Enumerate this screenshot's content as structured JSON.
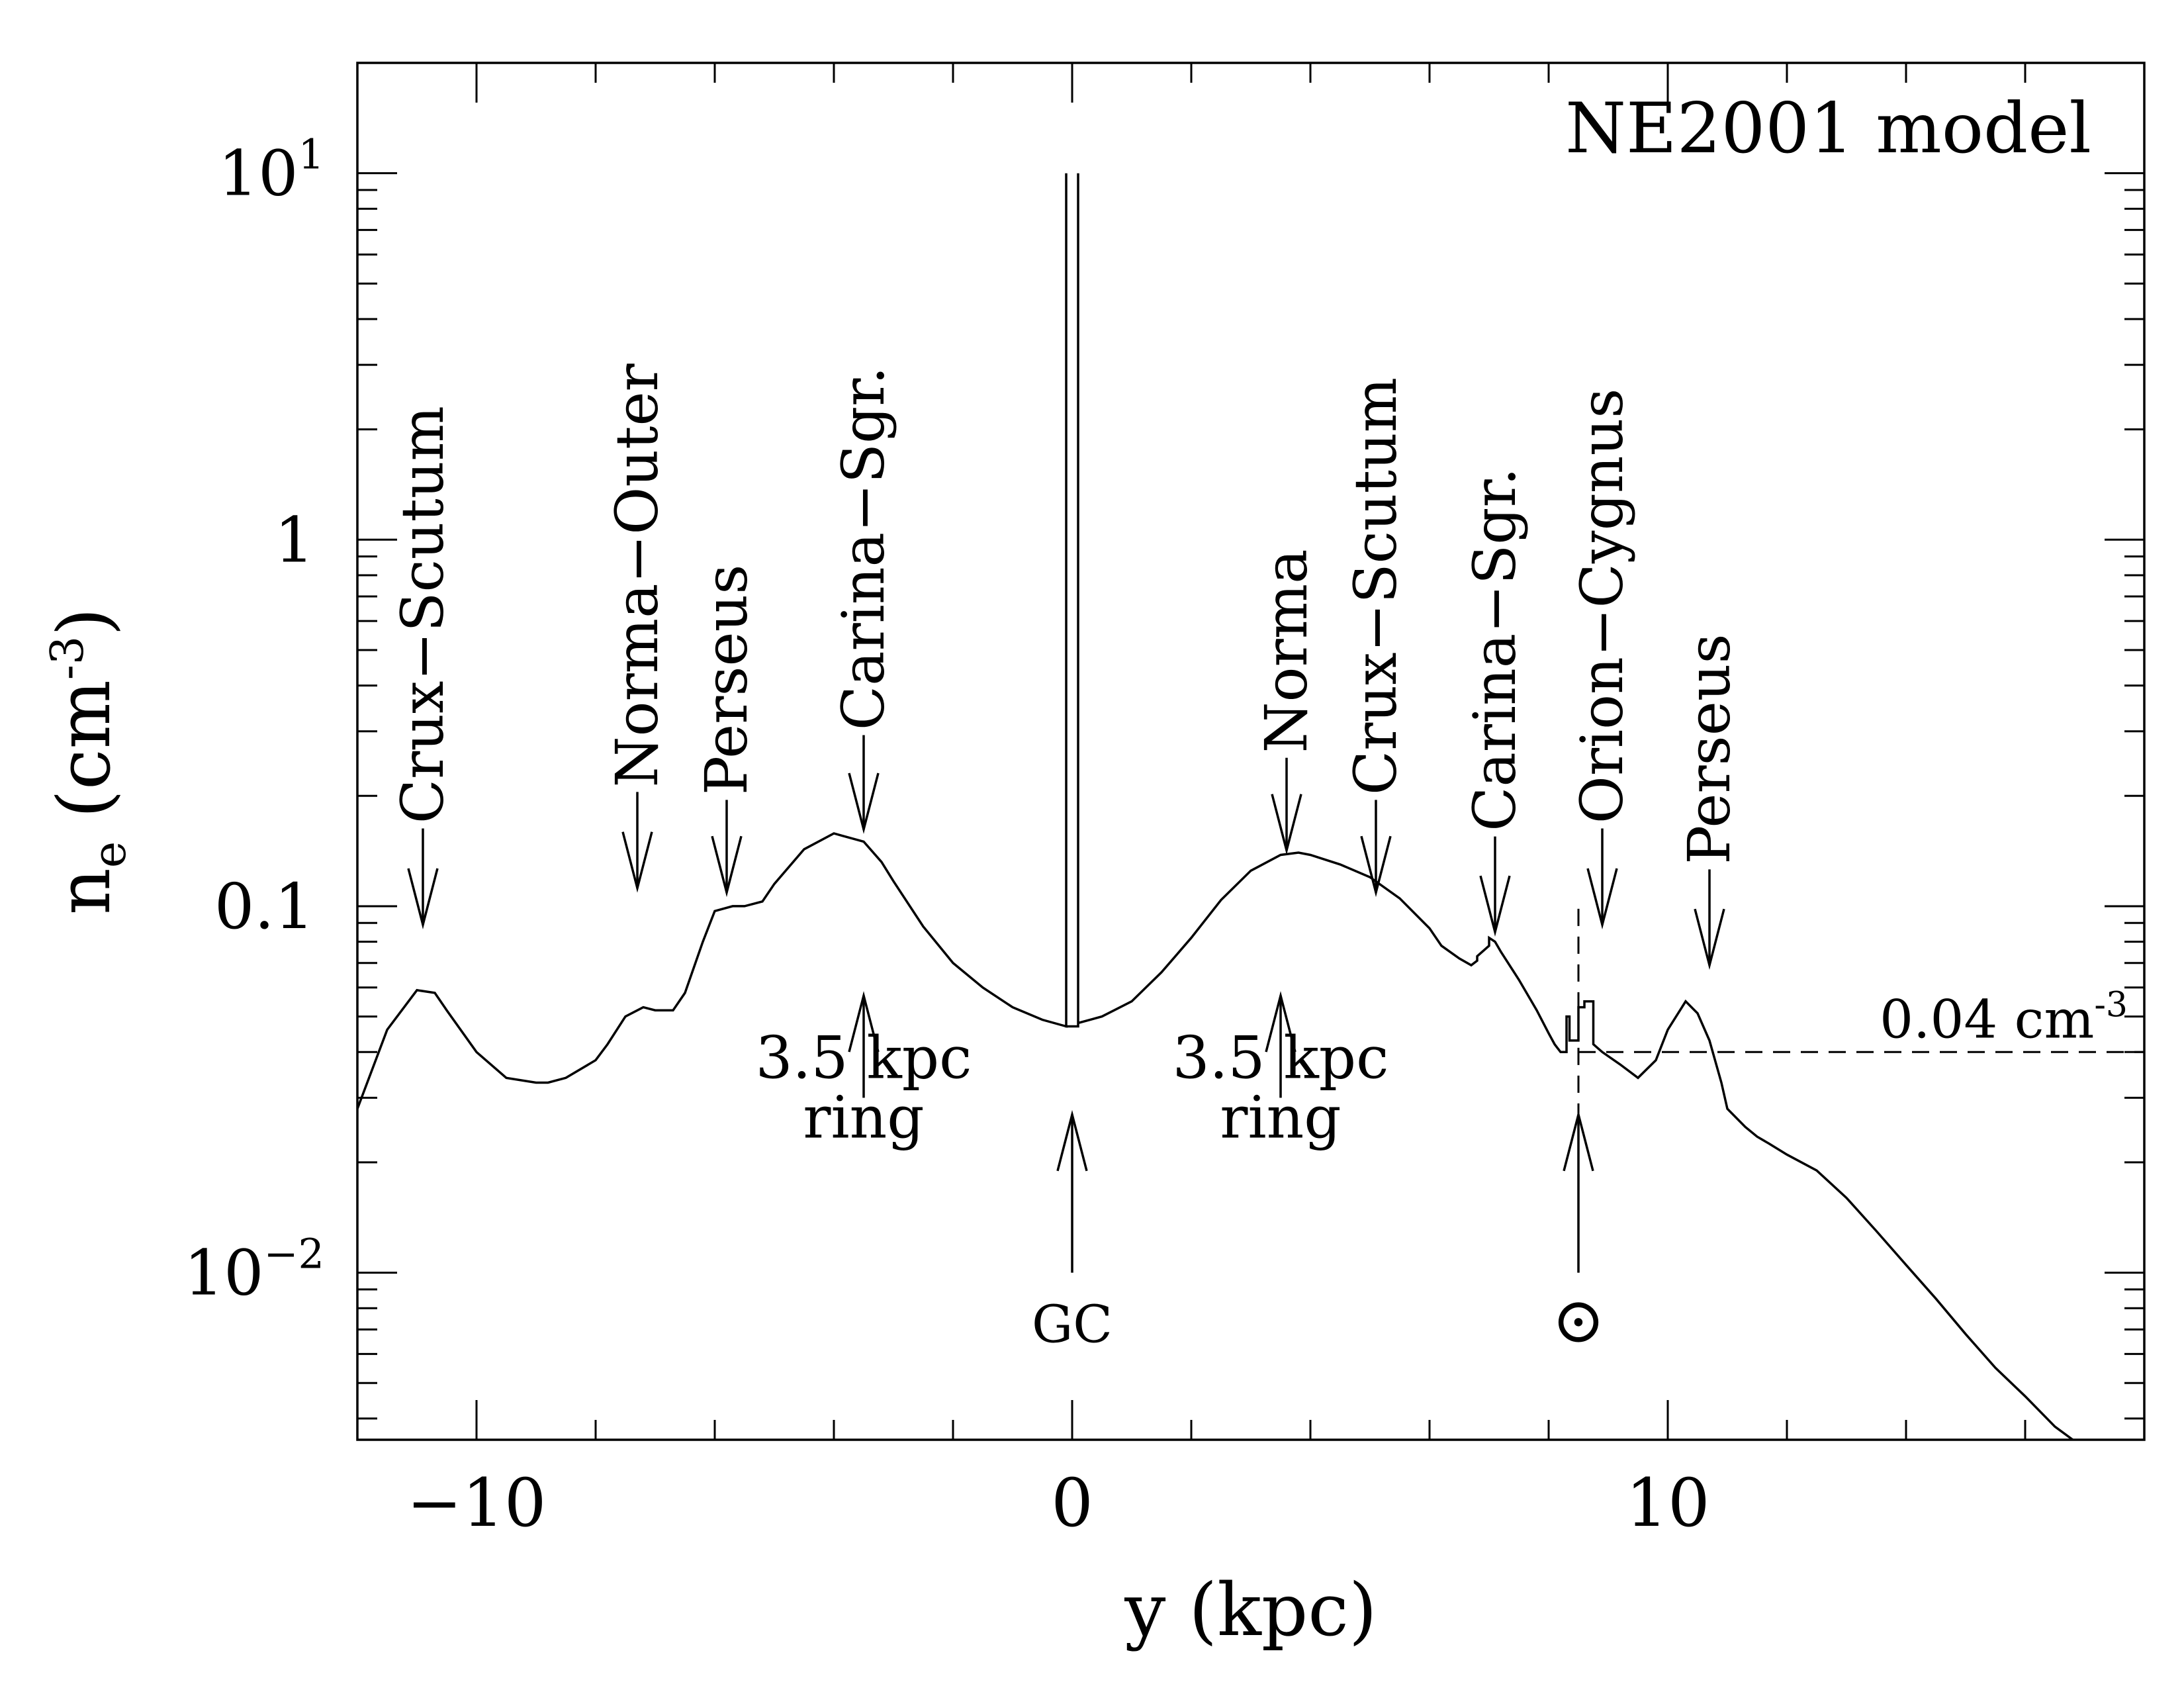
{
  "chart_data": {
    "type": "line",
    "title": "NE2001 model",
    "xlabel": "y (kpc)",
    "ylabel_main": "n",
    "ylabel_sub": "e",
    "ylabel_units": "(cm",
    "ylabel_units_exp": "-3",
    "ylabel_units_close": ")",
    "xlim": [
      -12,
      18
    ],
    "ylim": [
      0.0035,
      20
    ],
    "yscale": "log",
    "x_ticks": [
      {
        "value": -10,
        "label": "−10"
      },
      {
        "value": 0,
        "label": "0"
      },
      {
        "value": 10,
        "label": "10"
      }
    ],
    "y_ticks": [
      {
        "value": 0.01,
        "base": "10",
        "exp": "−2"
      },
      {
        "value": 0.1,
        "base": "0.1",
        "exp": ""
      },
      {
        "value": 1,
        "base": "1",
        "exp": ""
      },
      {
        "value": 10,
        "base": "10",
        "exp": "1"
      }
    ],
    "series": [
      {
        "x": [
          -12.0,
          -11.5,
          -11.0,
          -10.7,
          -10.5,
          -10.0,
          -9.5,
          -9.0,
          -8.8,
          -8.5,
          -8.0,
          -7.8,
          -7.5,
          -7.2,
          -7.0,
          -6.7,
          -6.5,
          -6.2,
          -6.0,
          -5.7,
          -5.5,
          -5.2,
          -5.0,
          -4.5,
          -4.0,
          -3.5,
          -3.2,
          -3.0,
          -2.5,
          -2.0,
          -1.5,
          -1.0,
          -0.5,
          -0.1,
          -0.1,
          -0.1,
          0.1,
          0.1,
          0.1,
          0.5,
          1.0,
          1.5,
          2.0,
          2.5,
          3.0,
          3.5,
          3.8,
          4.0,
          4.5,
          5.0,
          5.5,
          6.0,
          6.2,
          6.5,
          6.7,
          6.8,
          6.8,
          7.0,
          7.0,
          7.1,
          7.2,
          7.5,
          7.8,
          8.0,
          8.1,
          8.2,
          8.3,
          8.3,
          8.35,
          8.35,
          8.5,
          8.5,
          8.6,
          8.6,
          8.75,
          8.75,
          8.9,
          9.2,
          9.5,
          9.8,
          10.0,
          10.3,
          10.5,
          10.7,
          10.9,
          11.0,
          11.3,
          11.5,
          11.7,
          12.0,
          12.5,
          13.0,
          13.5,
          14.0,
          14.5,
          15.0,
          15.5,
          16.0,
          16.5,
          16.8
        ],
        "y": [
          0.028,
          0.046,
          0.059,
          0.058,
          0.052,
          0.04,
          0.034,
          0.033,
          0.033,
          0.034,
          0.038,
          0.042,
          0.05,
          0.053,
          0.052,
          0.052,
          0.058,
          0.08,
          0.097,
          0.1,
          0.1,
          0.103,
          0.115,
          0.143,
          0.158,
          0.15,
          0.132,
          0.117,
          0.088,
          0.07,
          0.06,
          0.053,
          0.049,
          0.047,
          10.0,
          0.047,
          0.047,
          10.0,
          0.048,
          0.05,
          0.055,
          0.066,
          0.082,
          0.104,
          0.125,
          0.138,
          0.14,
          0.138,
          0.13,
          0.12,
          0.105,
          0.087,
          0.078,
          0.072,
          0.069,
          0.071,
          0.073,
          0.078,
          0.082,
          0.08,
          0.075,
          0.063,
          0.052,
          0.045,
          0.042,
          0.04,
          0.04,
          0.05,
          0.05,
          0.043,
          0.043,
          0.053,
          0.053,
          0.055,
          0.055,
          0.042,
          0.04,
          0.037,
          0.034,
          0.038,
          0.046,
          0.055,
          0.051,
          0.043,
          0.033,
          0.028,
          0.025,
          0.0235,
          0.0225,
          0.021,
          0.019,
          0.016,
          0.013,
          0.0105,
          0.0085,
          0.0068,
          0.0055,
          0.0046,
          0.0038,
          0.0035
        ]
      }
    ],
    "reference_line": {
      "y": 0.04,
      "x_from": 8.5,
      "x_to": 18.0,
      "label": "0.04  cm",
      "label_exp": "-3"
    },
    "sun_vline": {
      "x": 8.5,
      "y_from": 0.026,
      "y_to": 0.1
    },
    "top_annotations": [
      {
        "label": "Crux−Scutum",
        "x": -10.9,
        "y_tip": 0.089,
        "y_tail": 0.163,
        "label_y_start": 0.168
      },
      {
        "label": "Norma−Outer",
        "x": -7.3,
        "y_tip": 0.112,
        "y_tail": 0.205,
        "label_y_start": 0.211
      },
      {
        "label": "Perseus",
        "x": -5.8,
        "y_tip": 0.109,
        "y_tail": 0.195,
        "label_y_start": 0.201
      },
      {
        "label": "Carina−Sgr.",
        "x": -3.5,
        "y_tip": 0.162,
        "y_tail": 0.293,
        "label_y_start": 0.302
      },
      {
        "label": "Norma",
        "x": 3.6,
        "y_tip": 0.142,
        "y_tail": 0.254,
        "label_y_start": 0.262
      },
      {
        "label": "Crux−Scutum",
        "x": 5.1,
        "y_tip": 0.109,
        "y_tail": 0.195,
        "label_y_start": 0.201
      },
      {
        "label": "Carina−Sgr.",
        "x": 7.1,
        "y_tip": 0.085,
        "y_tail": 0.155,
        "label_y_start": 0.16
      },
      {
        "label": "Orion−Cygnus",
        "x": 8.9,
        "y_tip": 0.089,
        "y_tail": 0.163,
        "label_y_start": 0.168
      },
      {
        "label": "Perseus",
        "x": 10.7,
        "y_tip": 0.069,
        "y_tail": 0.126,
        "label_y_start": 0.13
      }
    ],
    "bottom_annotations": [
      {
        "lines": [
          "3.5 kpc",
          "ring"
        ],
        "x": -3.5,
        "y_tip": 0.057,
        "y_tail": 0.03
      },
      {
        "lines": [
          "GC"
        ],
        "x": 0.0,
        "y_tip": 0.027,
        "y_tail": 0.01
      },
      {
        "lines": [
          "3.5 kpc",
          "ring"
        ],
        "x": 3.5,
        "y_tip": 0.057,
        "y_tail": 0.03
      },
      {
        "lines": [
          "⊙"
        ],
        "x": 8.5,
        "y_tip": 0.027,
        "y_tail": 0.01
      }
    ],
    "grid": false,
    "legend": "none"
  }
}
